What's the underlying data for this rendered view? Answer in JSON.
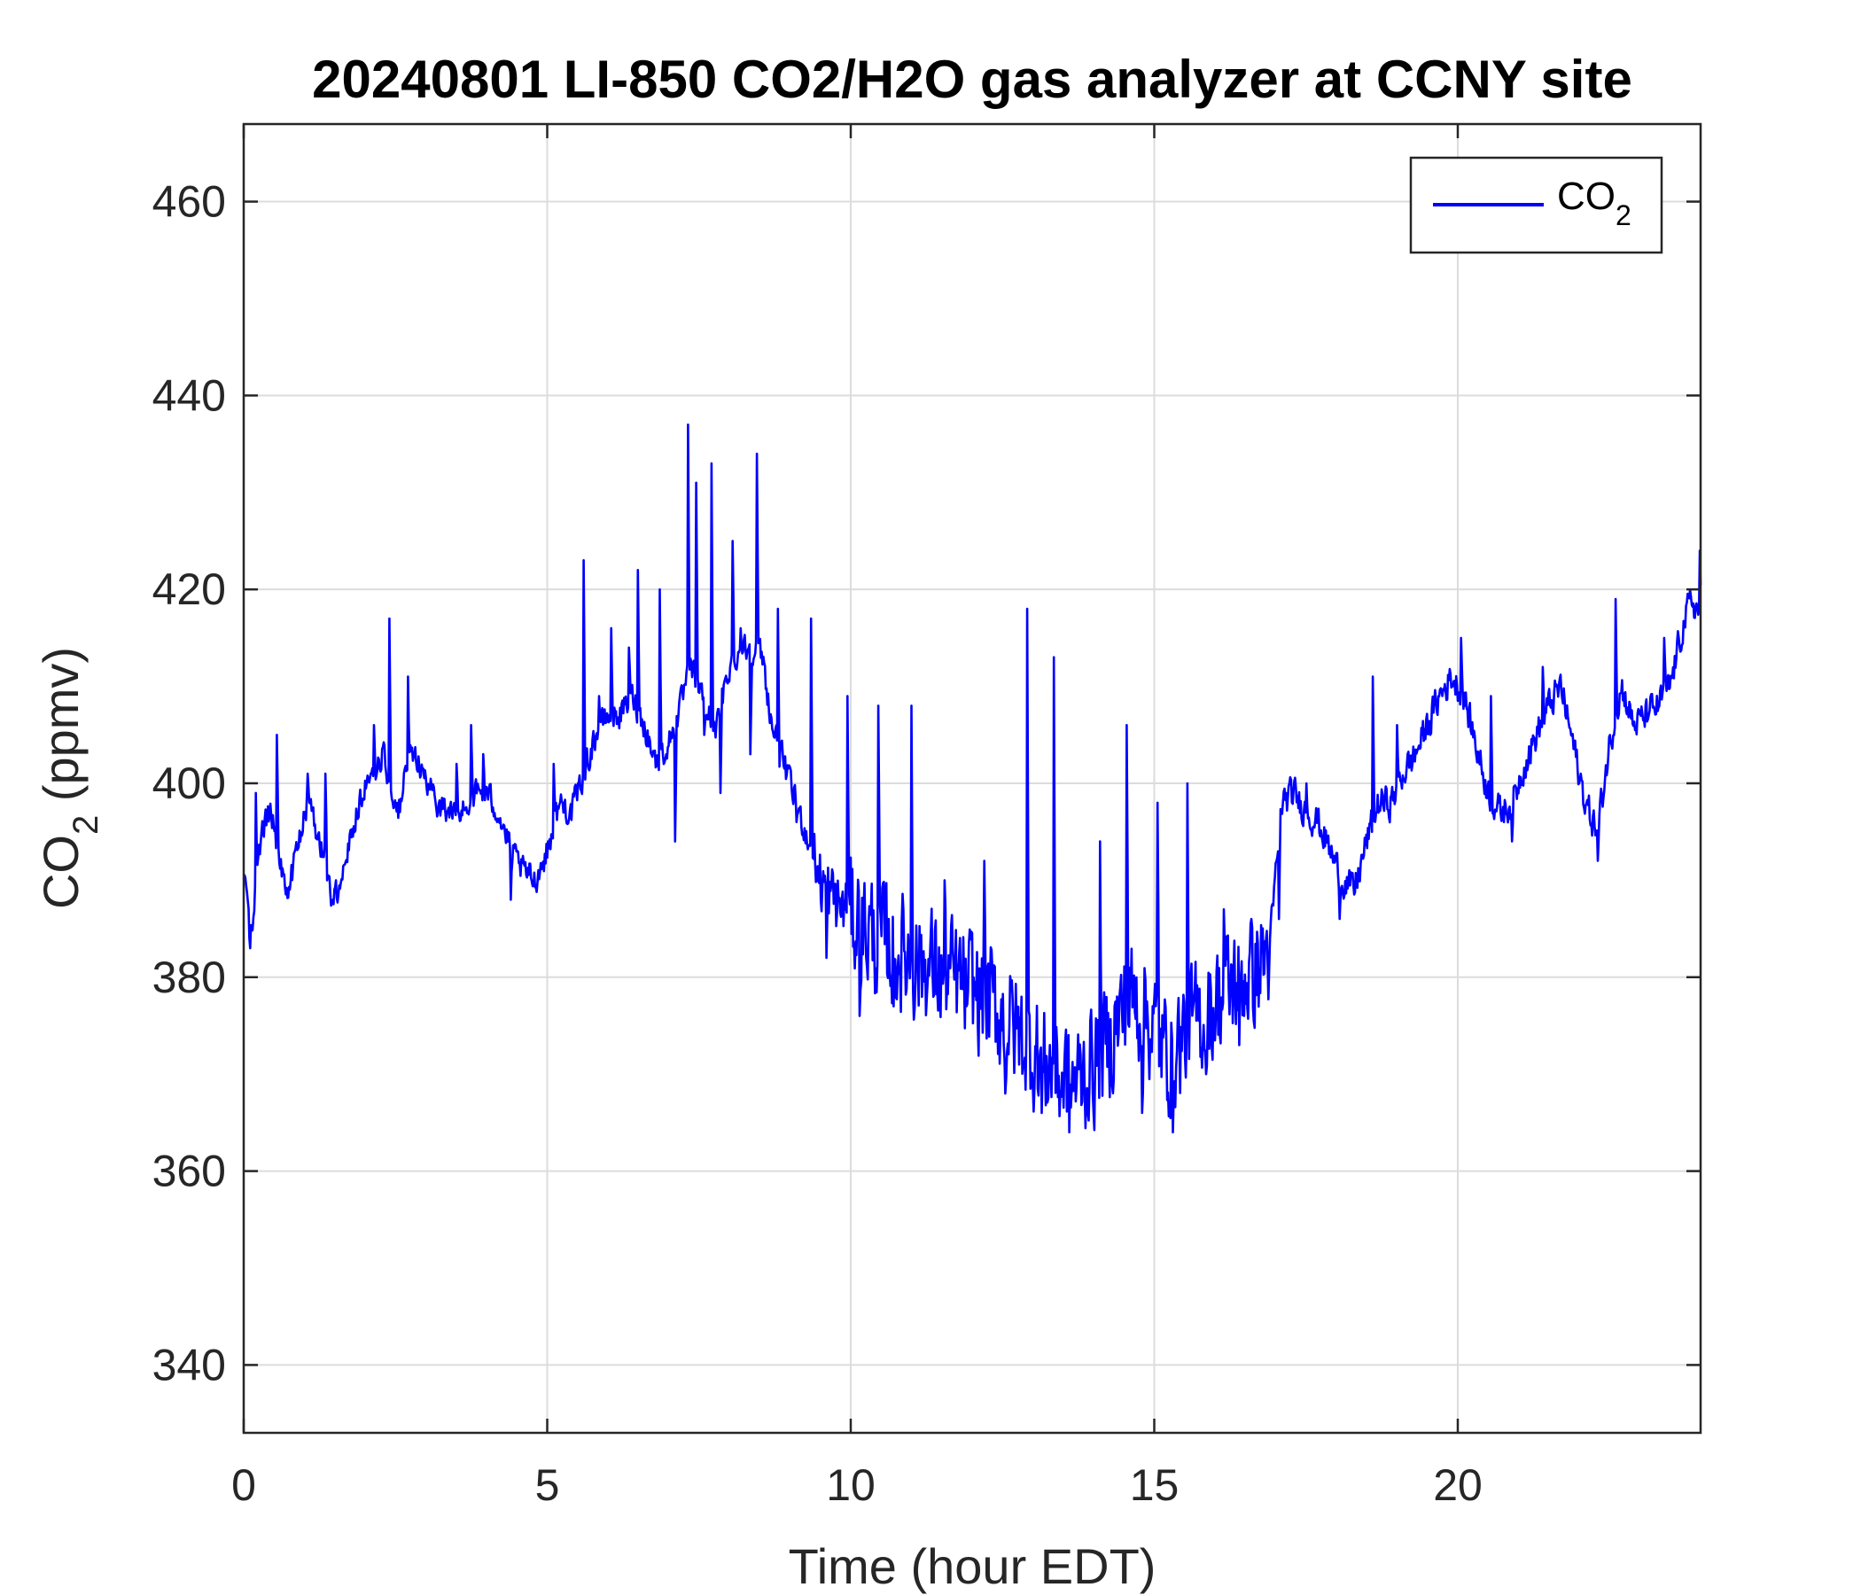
{
  "chart_data": {
    "type": "line",
    "title": "20240801 LI-850 CO2/H2O gas analyzer at CCNY site",
    "xlabel": {
      "main": "Time (hour EDT)"
    },
    "ylabel": {
      "main": "CO",
      "sub": "2",
      "rest": " (ppmv)"
    },
    "xlim": [
      0,
      24
    ],
    "ylim": [
      333,
      468
    ],
    "xticks": [
      0,
      5,
      10,
      15,
      20
    ],
    "yticks": [
      340,
      360,
      380,
      400,
      420,
      440,
      460
    ],
    "grid": true,
    "legend": {
      "position": "top-right",
      "entries": [
        {
          "main": "CO",
          "sub": "2"
        }
      ]
    },
    "series": [
      {
        "color": "#0000ff",
        "anchors": [
          [
            0.0,
            391
          ],
          [
            0.1,
            384
          ],
          [
            0.2,
            389
          ],
          [
            0.3,
            395
          ],
          [
            0.45,
            397
          ],
          [
            0.6,
            392
          ],
          [
            0.75,
            389
          ],
          [
            0.9,
            394
          ],
          [
            1.05,
            398
          ],
          [
            1.2,
            395
          ],
          [
            1.35,
            392
          ],
          [
            1.45,
            388
          ],
          [
            1.55,
            389
          ],
          [
            1.7,
            393
          ],
          [
            1.85,
            397
          ],
          [
            2.0,
            400
          ],
          [
            2.15,
            401
          ],
          [
            2.3,
            403
          ],
          [
            2.45,
            399
          ],
          [
            2.55,
            397
          ],
          [
            2.7,
            402
          ],
          [
            2.85,
            403
          ],
          [
            3.0,
            400
          ],
          [
            3.2,
            398
          ],
          [
            3.4,
            397
          ],
          [
            3.6,
            397
          ],
          [
            3.8,
            399
          ],
          [
            4.0,
            399
          ],
          [
            4.2,
            397
          ],
          [
            4.4,
            393
          ],
          [
            4.6,
            391
          ],
          [
            4.8,
            390
          ],
          [
            5.0,
            393
          ],
          [
            5.2,
            398
          ],
          [
            5.4,
            397
          ],
          [
            5.6,
            401
          ],
          [
            5.8,
            405
          ],
          [
            6.0,
            407
          ],
          [
            6.2,
            407
          ],
          [
            6.4,
            409
          ],
          [
            6.6,
            406
          ],
          [
            6.8,
            402
          ],
          [
            7.0,
            404
          ],
          [
            7.2,
            408
          ],
          [
            7.35,
            412
          ],
          [
            7.5,
            410
          ],
          [
            7.65,
            407
          ],
          [
            7.8,
            406
          ],
          [
            8.0,
            412
          ],
          [
            8.2,
            414
          ],
          [
            8.4,
            414
          ],
          [
            8.55,
            413
          ],
          [
            8.7,
            406
          ],
          [
            8.9,
            402
          ],
          [
            9.1,
            398
          ],
          [
            9.3,
            394
          ],
          [
            9.5,
            390
          ],
          [
            9.7,
            388
          ],
          [
            9.9,
            387
          ],
          [
            10.1,
            386
          ],
          [
            10.4,
            384
          ],
          [
            10.7,
            383
          ],
          [
            11.0,
            382
          ],
          [
            11.3,
            381
          ],
          [
            11.6,
            380
          ],
          [
            11.9,
            379
          ],
          [
            12.2,
            378
          ],
          [
            12.5,
            376
          ],
          [
            12.8,
            374
          ],
          [
            13.1,
            372
          ],
          [
            13.4,
            370
          ],
          [
            13.7,
            369
          ],
          [
            14.0,
            371
          ],
          [
            14.3,
            374
          ],
          [
            14.6,
            378
          ],
          [
            14.9,
            376
          ],
          [
            15.2,
            372
          ],
          [
            15.5,
            374
          ],
          [
            15.8,
            376
          ],
          [
            16.1,
            378
          ],
          [
            16.4,
            380
          ],
          [
            16.7,
            381
          ],
          [
            16.9,
            383
          ],
          [
            17.1,
            398
          ],
          [
            17.3,
            399
          ],
          [
            17.5,
            397
          ],
          [
            17.7,
            396
          ],
          [
            17.9,
            393
          ],
          [
            18.1,
            390
          ],
          [
            18.3,
            389
          ],
          [
            18.5,
            394
          ],
          [
            18.7,
            398
          ],
          [
            18.9,
            398
          ],
          [
            19.1,
            401
          ],
          [
            19.3,
            403
          ],
          [
            19.5,
            406
          ],
          [
            19.7,
            409
          ],
          [
            19.9,
            411
          ],
          [
            20.1,
            409
          ],
          [
            20.3,
            404
          ],
          [
            20.5,
            399
          ],
          [
            20.7,
            397
          ],
          [
            20.9,
            398
          ],
          [
            21.1,
            402
          ],
          [
            21.3,
            405
          ],
          [
            21.5,
            408
          ],
          [
            21.7,
            410
          ],
          [
            21.9,
            404
          ],
          [
            22.1,
            398
          ],
          [
            22.3,
            395
          ],
          [
            22.5,
            404
          ],
          [
            22.7,
            410
          ],
          [
            22.9,
            406
          ],
          [
            23.1,
            407
          ],
          [
            23.3,
            408
          ],
          [
            23.5,
            410
          ],
          [
            23.7,
            416
          ],
          [
            23.85,
            419
          ],
          [
            24.0,
            417
          ]
        ],
        "spikes": [
          [
            0.2,
            399
          ],
          [
            0.55,
            405
          ],
          [
            1.05,
            401
          ],
          [
            1.35,
            401
          ],
          [
            2.15,
            406
          ],
          [
            2.4,
            417
          ],
          [
            2.7,
            411
          ],
          [
            3.5,
            402
          ],
          [
            3.75,
            406
          ],
          [
            3.95,
            403
          ],
          [
            4.4,
            388
          ],
          [
            5.1,
            402
          ],
          [
            5.6,
            423
          ],
          [
            5.85,
            409
          ],
          [
            6.05,
            416
          ],
          [
            6.35,
            414
          ],
          [
            6.5,
            422
          ],
          [
            6.85,
            420
          ],
          [
            7.1,
            394
          ],
          [
            7.32,
            437
          ],
          [
            7.45,
            431
          ],
          [
            7.58,
            405
          ],
          [
            7.7,
            433
          ],
          [
            7.85,
            399
          ],
          [
            8.05,
            425
          ],
          [
            8.18,
            416
          ],
          [
            8.35,
            403
          ],
          [
            8.45,
            434
          ],
          [
            8.8,
            418
          ],
          [
            9.1,
            396
          ],
          [
            9.35,
            417
          ],
          [
            9.6,
            382
          ],
          [
            9.95,
            409
          ],
          [
            10.15,
            376
          ],
          [
            10.45,
            408
          ],
          [
            10.7,
            377
          ],
          [
            11.0,
            408
          ],
          [
            11.25,
            378
          ],
          [
            11.55,
            390
          ],
          [
            11.9,
            377
          ],
          [
            12.2,
            392
          ],
          [
            12.55,
            368
          ],
          [
            12.9,
            418
          ],
          [
            13.15,
            366
          ],
          [
            13.35,
            413
          ],
          [
            13.6,
            364
          ],
          [
            13.9,
            366
          ],
          [
            14.1,
            394
          ],
          [
            14.35,
            377
          ],
          [
            14.55,
            406
          ],
          [
            14.8,
            366
          ],
          [
            15.05,
            398
          ],
          [
            15.3,
            364
          ],
          [
            15.55,
            400
          ],
          [
            15.85,
            370
          ],
          [
            16.15,
            387
          ],
          [
            16.4,
            373
          ],
          [
            16.6,
            386
          ],
          [
            17.05,
            386
          ],
          [
            17.5,
            400
          ],
          [
            18.05,
            386
          ],
          [
            18.6,
            411
          ],
          [
            19.0,
            406
          ],
          [
            19.55,
            405
          ],
          [
            20.05,
            415
          ],
          [
            20.55,
            409
          ],
          [
            20.9,
            394
          ],
          [
            21.4,
            412
          ],
          [
            22.0,
            400
          ],
          [
            22.3,
            392
          ],
          [
            22.6,
            419
          ],
          [
            23.15,
            407
          ],
          [
            23.4,
            415
          ],
          [
            23.98,
            424
          ]
        ]
      }
    ]
  }
}
